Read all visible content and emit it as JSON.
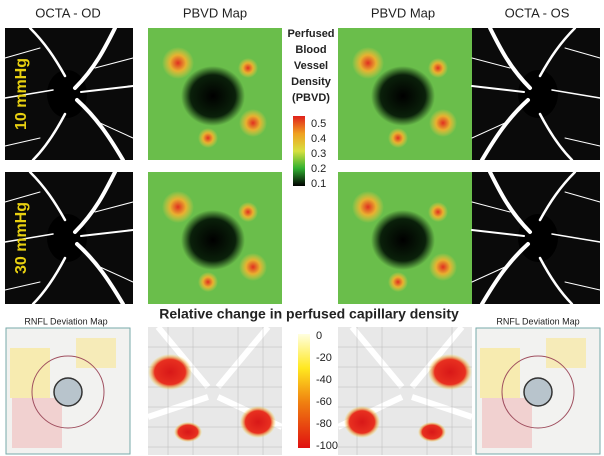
{
  "headers": [
    "OCTA - OD",
    "PBVD Map",
    "PBVD Map",
    "OCTA - OS"
  ],
  "legend": {
    "title_lines": [
      "Perfused",
      "Blood",
      "Vessel",
      "Density",
      "(PBVD)"
    ],
    "ticks": [
      "0.5",
      "0.4",
      "0.3",
      "0.2",
      "0.1"
    ]
  },
  "row_labels": [
    "10 mmHg",
    "30 mmHg"
  ],
  "bottom": {
    "left_label": "RNFL Deviation Map",
    "title": "Relative change in perfused capillary density",
    "right_label": "RNFL Deviation Map",
    "ticks": [
      "0",
      "-20",
      "-40",
      "-60",
      "-80",
      "-100"
    ]
  }
}
